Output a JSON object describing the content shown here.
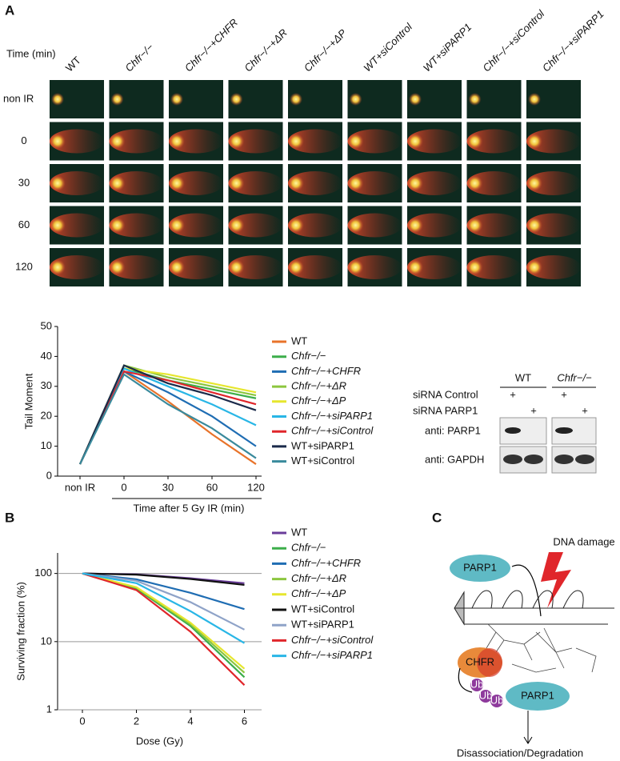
{
  "panel_labels": [
    "A",
    "B",
    "C"
  ],
  "comet": {
    "time_label": "Time (min)",
    "columns": [
      "WT",
      "Chfr−/−",
      "Chfr−/−+CHFR",
      "Chfr−/−+ΔR",
      "Chfr−/−+ΔP",
      "WT+siControl",
      "WT+siPARP1",
      "Chfr−/−+siControl",
      "Chfr−/−+siPARP1"
    ],
    "rows": [
      "non IR",
      "0",
      "30",
      "60",
      "120"
    ]
  },
  "chart_data": [
    {
      "type": "line",
      "ylabel": "Tail Moment",
      "xlabel": "Time after 5 Gy IR (min)",
      "categories": [
        "non IR",
        "0",
        "30",
        "60",
        "120"
      ],
      "ylim": [
        0,
        50
      ],
      "yticks": [
        0,
        10,
        20,
        30,
        40,
        50
      ],
      "series": [
        {
          "name": "WT",
          "color": "#e8732a",
          "values": [
            4,
            35,
            25,
            14,
            4
          ]
        },
        {
          "name": "Chfr−/−",
          "color": "#3cae4a",
          "values": [
            4,
            36,
            32,
            29,
            26
          ]
        },
        {
          "name": "Chfr−/−+CHFR",
          "color": "#1f6db3",
          "values": [
            4,
            35,
            28,
            20,
            10
          ]
        },
        {
          "name": "Chfr−/−+ΔR",
          "color": "#8cc63f",
          "values": [
            4,
            37,
            33,
            30,
            27
          ]
        },
        {
          "name": "Chfr−/−+ΔP",
          "color": "#e6e62e",
          "values": [
            4,
            36,
            34,
            31,
            28
          ]
        },
        {
          "name": "Chfr−/−+siPARP1",
          "color": "#29b6e6",
          "values": [
            4,
            36,
            30,
            24,
            17
          ]
        },
        {
          "name": "Chfr−/−+siControl",
          "color": "#e0262b",
          "values": [
            4,
            35,
            32,
            28,
            24
          ]
        },
        {
          "name": "WT+siPARP1",
          "color": "#1b2a4a",
          "values": [
            4,
            37,
            31,
            27,
            22
          ]
        },
        {
          "name": "WT+siControl",
          "color": "#3a8a9c",
          "values": [
            4,
            34,
            24,
            16,
            6
          ]
        }
      ]
    },
    {
      "type": "line",
      "ylabel": "Surviving fraction (%)",
      "xlabel": "Dose (Gy)",
      "log_scale": true,
      "categories": [
        "0",
        "2",
        "4",
        "6"
      ],
      "ylim": [
        1,
        200
      ],
      "yticks": [
        1,
        10,
        100
      ],
      "grid": true,
      "series": [
        {
          "name": "WT",
          "color": "#6a3d9a",
          "values": [
            100,
            97,
            85,
            72
          ]
        },
        {
          "name": "Chfr−/−",
          "color": "#3cae4a",
          "values": [
            100,
            60,
            17,
            3
          ]
        },
        {
          "name": "Chfr−/−+CHFR",
          "color": "#1f6db3",
          "values": [
            100,
            82,
            52,
            30
          ]
        },
        {
          "name": "Chfr−/−+ΔR",
          "color": "#8cc63f",
          "values": [
            100,
            62,
            18,
            3.5
          ]
        },
        {
          "name": "Chfr−/−+ΔP",
          "color": "#e6e62e",
          "values": [
            100,
            63,
            19,
            4
          ]
        },
        {
          "name": "WT+siControl",
          "color": "#111111",
          "values": [
            100,
            96,
            83,
            68
          ]
        },
        {
          "name": "WT+siPARP1",
          "color": "#8fa3c8",
          "values": [
            100,
            78,
            38,
            15
          ]
        },
        {
          "name": "Chfr−/−+siControl",
          "color": "#e0262b",
          "values": [
            100,
            57,
            14,
            2.3
          ]
        },
        {
          "name": "Chfr−/−+siPARP1",
          "color": "#29b6e6",
          "values": [
            100,
            72,
            28,
            9.5
          ]
        }
      ]
    }
  ],
  "blot": {
    "groups": [
      "WT",
      "Chfr−/−"
    ],
    "conditions": [
      "siRNA Control",
      "siRNA PARP1"
    ],
    "marks": [
      "+",
      "+",
      "+",
      "+"
    ],
    "antibodies": [
      "anti: PARP1",
      "anti: GAPDH"
    ]
  },
  "diagram": {
    "damage": "DNA damage",
    "parp1_top": "PARP1",
    "chfr": "CHFR",
    "ub": [
      "Ub",
      "Ub",
      "Ub"
    ],
    "parp1_bottom": "PARP1",
    "outcome": "Disassociation/Degradation"
  }
}
